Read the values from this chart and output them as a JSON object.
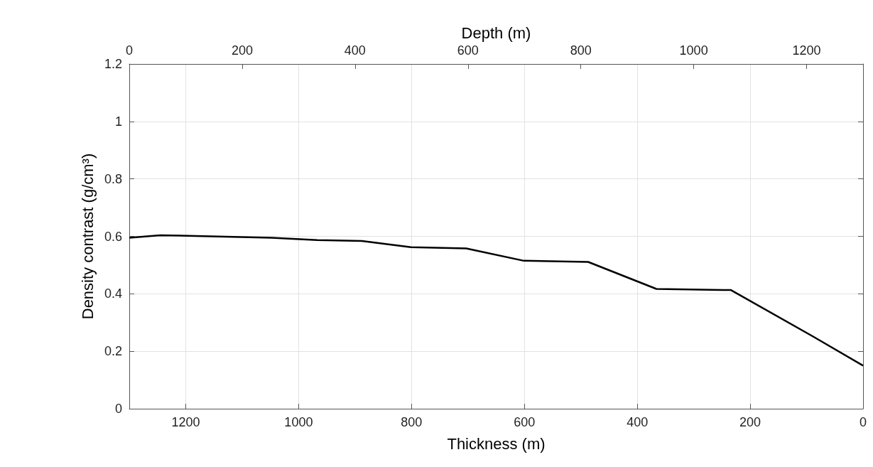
{
  "chart_data": {
    "type": "line",
    "xlabel": "Thickness (m)",
    "x2label": "Depth (m)",
    "ylabel": "Density contrast (g/cm³)",
    "x": [
      1300,
      1245,
      1048,
      967,
      888,
      801,
      703,
      601,
      487,
      366,
      234,
      90,
      0
    ],
    "series": [
      {
        "color": "#000000",
        "values": [
          0.595,
          0.604,
          0.595,
          0.587,
          0.584,
          0.562,
          0.558,
          0.515,
          0.511,
          0.417,
          0.413,
          0.253,
          0.15
        ]
      }
    ],
    "xlim": [
      1300,
      0
    ],
    "xticks": [
      1200,
      1000,
      800,
      600,
      400,
      200,
      0
    ],
    "x2lim": [
      0,
      1300
    ],
    "x2ticks": [
      0,
      200,
      400,
      600,
      800,
      1000,
      1200
    ],
    "ylim": [
      0,
      1.2
    ],
    "yticks": [
      0,
      0.2,
      0.4,
      0.6,
      0.8,
      1,
      1.2
    ],
    "grid": true,
    "marker": "none",
    "line_style": "solid"
  }
}
